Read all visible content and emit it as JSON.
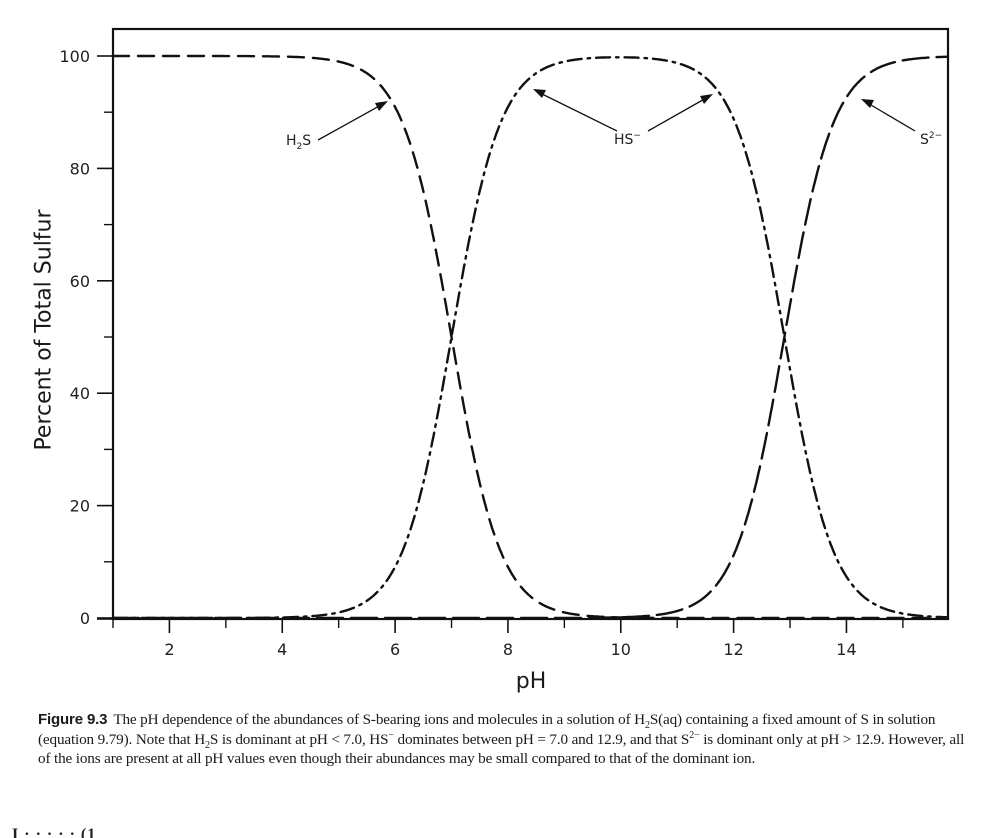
{
  "figure": {
    "number_label": "Figure 9.3",
    "caption_segments": [
      {
        "t": "The pH dependence of the abundances of S-bearing ions and molecules in a solution of H"
      },
      {
        "t": "2",
        "sub": true
      },
      {
        "t": "S(aq) containing a fixed amount of S in solution (equation 9.79). Note that H"
      },
      {
        "t": "2",
        "sub": true
      },
      {
        "t": "S is dominant at pH < 7.0, HS"
      },
      {
        "t": "−",
        "sup": true
      },
      {
        "t": " dominates between pH = 7.0 and 12.9, and that S"
      },
      {
        "t": "2−",
        "sup": true
      },
      {
        "t": " is dominant only at pH > 12.9. However, all of the ions are present at all pH values even though their abundances may be small compared to that of the dominant ion."
      }
    ],
    "cutoff_text": "I                              ·    ·                                             ·                                          ·                 ·              (1"
  },
  "chart_data": {
    "type": "line",
    "title": "",
    "xlabel": "pH",
    "ylabel": "Percent of Total Sulfur",
    "xlim": [
      1.0,
      15.8
    ],
    "ylim": [
      0,
      100
    ],
    "x_ticks_major": [
      2,
      4,
      6,
      8,
      10,
      12,
      14
    ],
    "x_ticks_minor": [
      1,
      3,
      5,
      7,
      9,
      11,
      13,
      15
    ],
    "y_ticks_major": [
      0,
      20,
      40,
      60,
      80,
      100
    ],
    "y_ticks_minor": [
      10,
      30,
      50,
      70,
      90
    ],
    "grid": false,
    "legend": "inline labels with arrows",
    "pKa1": 7.0,
    "pKa2": 12.9,
    "x": [
      1,
      2,
      3,
      4,
      5,
      5.5,
      6,
      6.5,
      7,
      7.5,
      8,
      8.5,
      9,
      10,
      11,
      11.5,
      12,
      12.5,
      12.9,
      13.5,
      14,
      14.5,
      15,
      15.8
    ],
    "series": [
      {
        "name": "H2S",
        "label": "H₂S",
        "style": "dashed",
        "values": [
          100,
          100,
          100,
          99.9,
          99.0,
          96.9,
          90.9,
          76.0,
          50.0,
          24.0,
          9.1,
          3.1,
          1.0,
          0.1,
          0.0,
          0.0,
          0.0,
          0.0,
          0.0,
          0.0,
          0.0,
          0.0,
          0.0,
          0.0
        ]
      },
      {
        "name": "HS-",
        "label": "HS⁻",
        "style": "dash-dot",
        "values": [
          0.0,
          0.0,
          0.0,
          0.1,
          1.0,
          3.1,
          9.1,
          24.0,
          50.0,
          76.0,
          90.9,
          96.9,
          98.9,
          99.8,
          98.7,
          96.2,
          88.8,
          71.5,
          50.0,
          20.1,
          7.4,
          2.5,
          0.8,
          0.1
        ]
      },
      {
        "name": "S2-",
        "label": "S²⁻",
        "style": "long-dashed",
        "values": [
          0.0,
          0.0,
          0.0,
          0.0,
          0.0,
          0.0,
          0.0,
          0.0,
          0.0,
          0.0,
          0.0,
          0.0,
          0.0,
          0.1,
          1.2,
          3.8,
          11.2,
          28.5,
          50.0,
          79.9,
          92.6,
          97.5,
          99.2,
          99.9
        ]
      }
    ],
    "annotations": [
      {
        "text": "H₂S",
        "target_series": "H2S",
        "arrow_to_pH": 5.9
      },
      {
        "text": "HS⁻",
        "target_series": "HS-",
        "arrow_to_pH": [
          8.5,
          11.7
        ]
      },
      {
        "text": "S²⁻",
        "target_series": "S2-",
        "arrow_to_pH": 14.1
      }
    ]
  },
  "axis": {
    "y_tick_labels": [
      "0",
      "20",
      "40",
      "60",
      "80",
      "100"
    ],
    "x_tick_labels": [
      "2",
      "4",
      "6",
      "8",
      "10",
      "12",
      "14"
    ]
  },
  "labels": {
    "h2s": {
      "base": "H",
      "sub": "2",
      "tail": "S"
    },
    "hs": {
      "base": "HS",
      "sup": "−"
    },
    "s2": {
      "base": "S",
      "sup": "2−"
    }
  }
}
